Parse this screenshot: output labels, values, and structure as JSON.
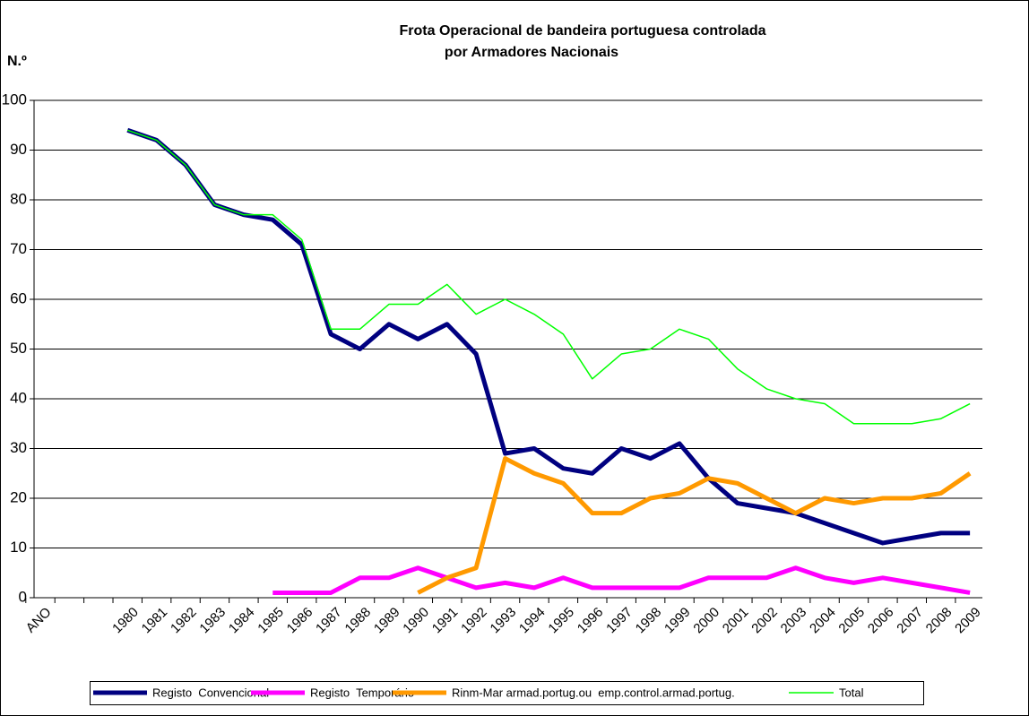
{
  "chart_data": {
    "type": "line",
    "title": "Frota Operacional de bandeira portuguesa controlada",
    "subtitle": "por Armadores Nacionais",
    "y_label": "N.º",
    "categories": [
      "ANO",
      null,
      null,
      "1980",
      "1981",
      "1982",
      "1983",
      "1984",
      "1985",
      "1986",
      "1987",
      "1988",
      "1989",
      "1990",
      "1991",
      "1992",
      "1993",
      "1994",
      "1995",
      "1996",
      "1997",
      "1998",
      "1999",
      "2000",
      "2001",
      "2002",
      "2003",
      "2004",
      "2005",
      "2006",
      "2007",
      "2008",
      "2009"
    ],
    "series": [
      {
        "name": "Registo  Convencional",
        "color": "#000080",
        "width": 5,
        "values": [
          null,
          null,
          null,
          94,
          92,
          87,
          79,
          77,
          76,
          71,
          53,
          50,
          55,
          52,
          55,
          49,
          29,
          30,
          26,
          25,
          30,
          28,
          31,
          24,
          19,
          18,
          17,
          15,
          13,
          11,
          12,
          13,
          13
        ]
      },
      {
        "name": "Registo  Temporário",
        "color": "#ff00ff",
        "width": 5,
        "values": [
          null,
          null,
          null,
          null,
          null,
          null,
          null,
          null,
          1,
          1,
          1,
          4,
          4,
          6,
          4,
          2,
          3,
          2,
          4,
          2,
          2,
          2,
          2,
          4,
          4,
          4,
          6,
          4,
          3,
          4,
          3,
          2,
          1
        ]
      },
      {
        "name": "Rinm-Mar armad.portug.ou  emp.control.armad.portug.",
        "color": "#ff9900",
        "width": 5,
        "values": [
          null,
          null,
          null,
          null,
          null,
          null,
          null,
          null,
          null,
          null,
          null,
          null,
          null,
          1,
          4,
          6,
          28,
          25,
          23,
          17,
          17,
          20,
          21,
          24,
          23,
          20,
          17,
          20,
          19,
          20,
          20,
          21,
          25
        ]
      },
      {
        "name": "Total",
        "color": "#00ff00",
        "width": 1.5,
        "values": [
          null,
          null,
          null,
          94,
          92,
          87,
          79,
          77,
          77,
          72,
          54,
          54,
          59,
          59,
          63,
          57,
          60,
          57,
          53,
          44,
          49,
          50,
          54,
          52,
          46,
          42,
          40,
          39,
          35,
          35,
          35,
          36,
          39
        ]
      }
    ],
    "ylim": [
      0,
      100
    ],
    "yticks": [
      0,
      10,
      20,
      30,
      40,
      50,
      60,
      70,
      80,
      90,
      100
    ],
    "grid": true,
    "legend": "bottom"
  }
}
